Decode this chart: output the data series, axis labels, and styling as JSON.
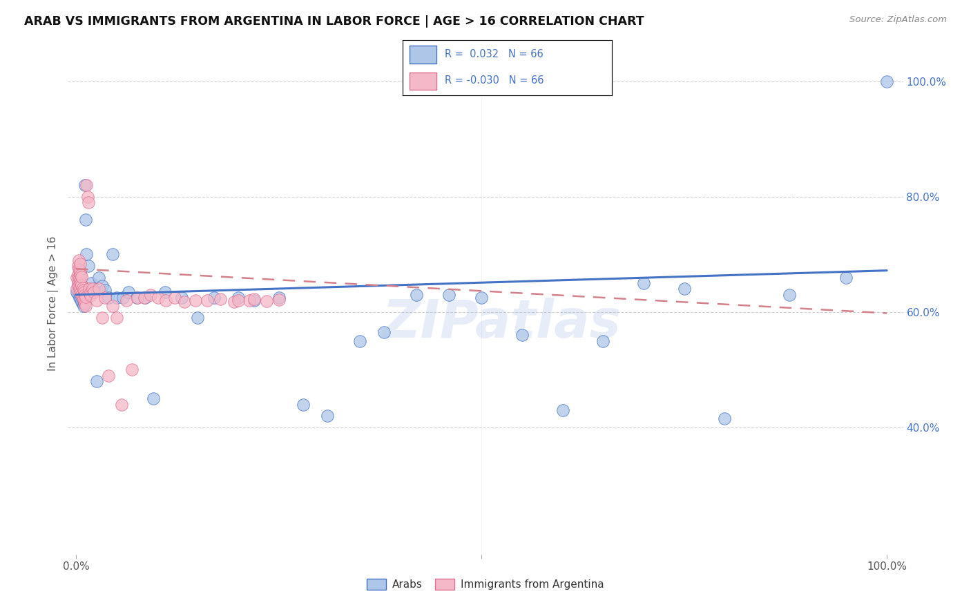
{
  "title": "ARAB VS IMMIGRANTS FROM ARGENTINA IN LABOR FORCE | AGE > 16 CORRELATION CHART",
  "source": "Source: ZipAtlas.com",
  "ylabel": "In Labor Force | Age > 16",
  "right_yticks": [
    "100.0%",
    "80.0%",
    "60.0%",
    "40.0%"
  ],
  "right_ytick_vals": [
    1.0,
    0.8,
    0.6,
    0.4
  ],
  "watermark": "ZIPatlas",
  "arab_fill_color": "#aec6e8",
  "arab_edge_color": "#4472C4",
  "argentina_fill_color": "#f4b8c8",
  "argentina_edge_color": "#e07090",
  "arab_line_color": "#4472C4",
  "argentina_line_color": "#d4808a",
  "xlim": [
    0.0,
    1.0
  ],
  "ylim": [
    0.18,
    1.05
  ],
  "arab_line_y0": 0.63,
  "arab_line_y1": 0.672,
  "arg_line_y0": 0.675,
  "arg_line_y1": 0.598,
  "arab_x": [
    0.001,
    0.002,
    0.002,
    0.003,
    0.003,
    0.003,
    0.004,
    0.004,
    0.004,
    0.005,
    0.005,
    0.005,
    0.005,
    0.006,
    0.006,
    0.006,
    0.007,
    0.007,
    0.008,
    0.008,
    0.009,
    0.009,
    0.01,
    0.01,
    0.011,
    0.012,
    0.013,
    0.015,
    0.017,
    0.019,
    0.022,
    0.025,
    0.028,
    0.032,
    0.036,
    0.04,
    0.045,
    0.05,
    0.058,
    0.065,
    0.075,
    0.085,
    0.095,
    0.11,
    0.13,
    0.15,
    0.17,
    0.2,
    0.22,
    0.25,
    0.28,
    0.31,
    0.35,
    0.38,
    0.42,
    0.46,
    0.5,
    0.55,
    0.6,
    0.65,
    0.7,
    0.75,
    0.8,
    0.88,
    0.95,
    1.0
  ],
  "arab_y": [
    0.635,
    0.64,
    0.65,
    0.63,
    0.645,
    0.66,
    0.625,
    0.638,
    0.652,
    0.628,
    0.641,
    0.655,
    0.668,
    0.622,
    0.636,
    0.65,
    0.618,
    0.632,
    0.615,
    0.629,
    0.61,
    0.624,
    0.615,
    0.629,
    0.82,
    0.76,
    0.7,
    0.68,
    0.64,
    0.65,
    0.64,
    0.48,
    0.66,
    0.645,
    0.638,
    0.625,
    0.7,
    0.625,
    0.625,
    0.635,
    0.625,
    0.625,
    0.45,
    0.635,
    0.625,
    0.59,
    0.625,
    0.625,
    0.62,
    0.625,
    0.44,
    0.42,
    0.55,
    0.565,
    0.63,
    0.63,
    0.625,
    0.56,
    0.43,
    0.55,
    0.65,
    0.64,
    0.415,
    0.63,
    0.66,
    1.0
  ],
  "argentina_x": [
    0.001,
    0.001,
    0.002,
    0.002,
    0.002,
    0.003,
    0.003,
    0.003,
    0.003,
    0.004,
    0.004,
    0.004,
    0.005,
    0.005,
    0.005,
    0.005,
    0.006,
    0.006,
    0.006,
    0.007,
    0.007,
    0.007,
    0.008,
    0.008,
    0.009,
    0.009,
    0.01,
    0.01,
    0.011,
    0.011,
    0.012,
    0.012,
    0.013,
    0.014,
    0.015,
    0.016,
    0.017,
    0.018,
    0.02,
    0.022,
    0.025,
    0.028,
    0.032,
    0.036,
    0.04,
    0.045,
    0.05,
    0.056,
    0.062,
    0.069,
    0.076,
    0.084,
    0.092,
    0.101,
    0.111,
    0.122,
    0.134,
    0.147,
    0.162,
    0.178,
    0.195,
    0.214,
    0.2,
    0.22,
    0.235,
    0.25
  ],
  "argentina_y": [
    0.66,
    0.64,
    0.65,
    0.665,
    0.68,
    0.645,
    0.66,
    0.675,
    0.69,
    0.642,
    0.658,
    0.673,
    0.638,
    0.654,
    0.669,
    0.684,
    0.634,
    0.65,
    0.665,
    0.63,
    0.646,
    0.661,
    0.626,
    0.642,
    0.622,
    0.638,
    0.618,
    0.634,
    0.614,
    0.63,
    0.61,
    0.626,
    0.82,
    0.8,
    0.79,
    0.64,
    0.632,
    0.628,
    0.64,
    0.635,
    0.62,
    0.64,
    0.59,
    0.625,
    0.49,
    0.61,
    0.59,
    0.44,
    0.62,
    0.5,
    0.625,
    0.625,
    0.63,
    0.625,
    0.62,
    0.625,
    0.618,
    0.62,
    0.62,
    0.622,
    0.618,
    0.62,
    0.62,
    0.622,
    0.619,
    0.621
  ]
}
